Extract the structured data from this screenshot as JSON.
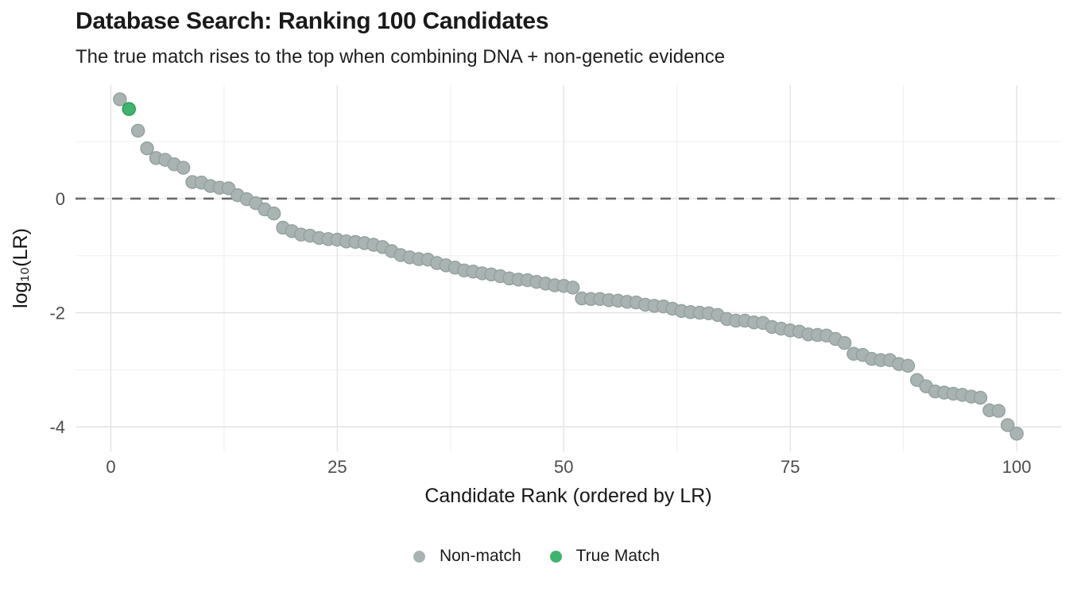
{
  "title": "Database Search: Ranking 100 Candidates",
  "subtitle": "The true match rises to the top when combining DNA + non-genetic evidence",
  "legend": {
    "items": [
      {
        "label": "Non-match",
        "color": "#a9b4b2"
      },
      {
        "label": "True Match",
        "color": "#3eb46e"
      }
    ]
  },
  "theme": {
    "background": "#ffffff",
    "grid_major": "#e3e3e3",
    "grid_minor": "#efefef",
    "ref_line": "#6a6a6a",
    "axis_title_color": "#171717",
    "tick_label_color": "#4d4d4d",
    "non_match_fill": "#a9b4b2",
    "non_match_stroke": "#94a29f",
    "true_match_fill": "#3eb46e",
    "true_match_stroke": "#2d9c59"
  },
  "chart_data": {
    "type": "scatter",
    "title": "Database Search: Ranking 100 Candidates",
    "subtitle": "The true match rises to the top when combining DNA + non-genetic evidence",
    "xlabel": "Candidate Rank (ordered by LR)",
    "ylabel": "log₁₀(LR)",
    "x_ticks": [
      0,
      25,
      50,
      75,
      100
    ],
    "x_minor_ticks": [
      12.5,
      37.5,
      62.5,
      87.5
    ],
    "y_ticks": [
      0,
      -2,
      -4
    ],
    "y_minor_ticks": [
      1,
      -1,
      -3
    ],
    "xlim": [
      -3.9,
      104.9
    ],
    "ylim": [
      -4.43,
      1.99
    ],
    "grid": true,
    "legend_position": "bottom",
    "reference_line_y": 0,
    "reference_line_style": "dashed",
    "x": "candidate rank 1..100",
    "true_match_rank": 2,
    "series": [
      {
        "name": "Non-match",
        "color": "#a9b4b2"
      },
      {
        "name": "True Match",
        "color": "#3eb46e"
      }
    ],
    "values": [
      1.74,
      1.57,
      1.19,
      0.88,
      0.71,
      0.68,
      0.6,
      0.54,
      0.29,
      0.28,
      0.22,
      0.19,
      0.18,
      0.06,
      -0.01,
      -0.08,
      -0.19,
      -0.26,
      -0.51,
      -0.57,
      -0.63,
      -0.65,
      -0.69,
      -0.71,
      -0.72,
      -0.75,
      -0.76,
      -0.78,
      -0.81,
      -0.85,
      -0.92,
      -0.99,
      -1.03,
      -1.06,
      -1.07,
      -1.13,
      -1.17,
      -1.21,
      -1.26,
      -1.28,
      -1.31,
      -1.33,
      -1.36,
      -1.4,
      -1.42,
      -1.43,
      -1.46,
      -1.49,
      -1.52,
      -1.53,
      -1.56,
      -1.75,
      -1.76,
      -1.76,
      -1.78,
      -1.79,
      -1.81,
      -1.82,
      -1.86,
      -1.88,
      -1.89,
      -1.93,
      -1.97,
      -1.99,
      -2.0,
      -2.01,
      -2.04,
      -2.11,
      -2.14,
      -2.14,
      -2.17,
      -2.18,
      -2.25,
      -2.28,
      -2.31,
      -2.33,
      -2.38,
      -2.39,
      -2.4,
      -2.46,
      -2.53,
      -2.72,
      -2.74,
      -2.81,
      -2.83,
      -2.83,
      -2.9,
      -2.93,
      -3.18,
      -3.29,
      -3.38,
      -3.4,
      -3.42,
      -3.44,
      -3.47,
      -3.49,
      -3.71,
      -3.72,
      -3.97,
      -4.12
    ]
  }
}
